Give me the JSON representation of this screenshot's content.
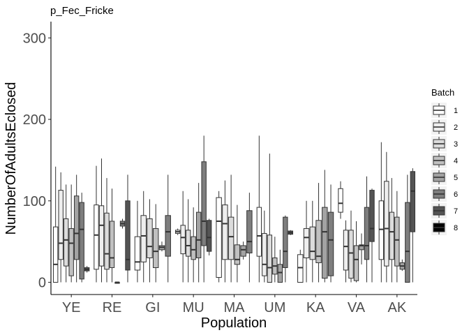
{
  "chart_data": {
    "type": "boxplot",
    "title": "p_Fec_Fricke",
    "xlabel": "Population",
    "ylabel": "NumberOfAdultsEclosed",
    "ylim": [
      -15,
      320
    ],
    "yticks": [
      0,
      100,
      200,
      300
    ],
    "categories": [
      "YE",
      "RE",
      "GI",
      "MU",
      "MA",
      "UM",
      "KA",
      "VA",
      "AK"
    ],
    "legend": {
      "title": "Batch",
      "position": "right"
    },
    "batches": [
      {
        "name": "1",
        "fill": "#ffffff"
      },
      {
        "name": "2",
        "fill": "#eeeeee"
      },
      {
        "name": "3",
        "fill": "#dcdcdc"
      },
      {
        "name": "4",
        "fill": "#c0c0c0"
      },
      {
        "name": "5",
        "fill": "#a3a3a3"
      },
      {
        "name": "6",
        "fill": "#7e7e7e"
      },
      {
        "name": "7",
        "fill": "#545454"
      },
      {
        "name": "8",
        "fill": "#000000"
      }
    ],
    "boxes": [
      {
        "pop": "YE",
        "batch": 1,
        "min": 0,
        "q1": 0,
        "median": 22,
        "q3": 68,
        "max": 142
      },
      {
        "pop": "YE",
        "batch": 2,
        "min": 0,
        "q1": 28,
        "median": 48,
        "q3": 113,
        "max": 135
      },
      {
        "pop": "YE",
        "batch": 3,
        "min": 0,
        "q1": 20,
        "median": 52,
        "q3": 78,
        "max": 120
      },
      {
        "pop": "YE",
        "batch": 4,
        "min": 0,
        "q1": 8,
        "median": 48,
        "q3": 66,
        "max": 120
      },
      {
        "pop": "YE",
        "batch": 5,
        "min": 0,
        "q1": 28,
        "median": 60,
        "q3": 106,
        "max": 132
      },
      {
        "pop": "YE",
        "batch": 6,
        "min": 0,
        "q1": 4,
        "median": 65,
        "q3": 98,
        "max": 110
      },
      {
        "pop": "YE",
        "batch": 7,
        "min": 12,
        "q1": 14,
        "median": 16,
        "q3": 18,
        "max": 20
      },
      {
        "pop": "RE",
        "batch": 1,
        "min": 0,
        "q1": 16,
        "median": 58,
        "q3": 95,
        "max": 143
      },
      {
        "pop": "RE",
        "batch": 2,
        "min": 0,
        "q1": 20,
        "median": 70,
        "q3": 94,
        "max": 152
      },
      {
        "pop": "RE",
        "batch": 3,
        "min": 0,
        "q1": 16,
        "median": 35,
        "q3": 85,
        "max": 128
      },
      {
        "pop": "RE",
        "batch": 4,
        "min": 0,
        "q1": 18,
        "median": 30,
        "q3": 75,
        "max": 115
      },
      {
        "pop": "RE",
        "batch": 5,
        "min": 0,
        "q1": 0,
        "median": 0,
        "q3": 0,
        "max": 0
      },
      {
        "pop": "RE",
        "batch": 6,
        "min": 66,
        "q1": 69,
        "median": 72,
        "q3": 75,
        "max": 78
      },
      {
        "pop": "RE",
        "batch": 7,
        "min": 0,
        "q1": 15,
        "median": 28,
        "q3": 100,
        "max": 132
      },
      {
        "pop": "GI",
        "batch": 1,
        "min": 0,
        "q1": 15,
        "median": 25,
        "q3": 56,
        "max": 100
      },
      {
        "pop": "GI",
        "batch": 2,
        "min": 0,
        "q1": 25,
        "median": 57,
        "q3": 82,
        "max": 112
      },
      {
        "pop": "GI",
        "batch": 3,
        "min": 0,
        "q1": 30,
        "median": 44,
        "q3": 78,
        "max": 102
      },
      {
        "pop": "GI",
        "batch": 4,
        "min": 0,
        "q1": 18,
        "median": 38,
        "q3": 66,
        "max": 96
      },
      {
        "pop": "GI",
        "batch": 5,
        "min": 38,
        "q1": 40,
        "median": 43,
        "q3": 45,
        "max": 50
      },
      {
        "pop": "GI",
        "batch": 6,
        "min": 0,
        "q1": 32,
        "median": 62,
        "q3": 82,
        "max": 132
      },
      {
        "pop": "MU",
        "batch": 1,
        "min": 58,
        "q1": 60,
        "median": 62,
        "q3": 64,
        "max": 66
      },
      {
        "pop": "MU",
        "batch": 2,
        "min": 0,
        "q1": 35,
        "median": 55,
        "q3": 70,
        "max": 112
      },
      {
        "pop": "MU",
        "batch": 3,
        "min": 0,
        "q1": 32,
        "median": 45,
        "q3": 64,
        "max": 102
      },
      {
        "pop": "MU",
        "batch": 4,
        "min": 0,
        "q1": 28,
        "median": 40,
        "q3": 56,
        "max": 92
      },
      {
        "pop": "MU",
        "batch": 5,
        "min": 0,
        "q1": 30,
        "median": 52,
        "q3": 86,
        "max": 122
      },
      {
        "pop": "MU",
        "batch": 6,
        "min": 0,
        "q1": 45,
        "median": 75,
        "q3": 148,
        "max": 180
      },
      {
        "pop": "MU",
        "batch": 7,
        "min": 33,
        "q1": 38,
        "median": 55,
        "q3": 76,
        "max": 78
      },
      {
        "pop": "MA",
        "batch": 1,
        "min": 0,
        "q1": 6,
        "median": 75,
        "q3": 104,
        "max": 112
      },
      {
        "pop": "MA",
        "batch": 2,
        "min": 0,
        "q1": 28,
        "median": 72,
        "q3": 95,
        "max": 125
      },
      {
        "pop": "MA",
        "batch": 3,
        "min": 0,
        "q1": 28,
        "median": 56,
        "q3": 80,
        "max": 132
      },
      {
        "pop": "MA",
        "batch": 4,
        "min": 0,
        "q1": 22,
        "median": 28,
        "q3": 46,
        "max": 95
      },
      {
        "pop": "MA",
        "batch": 5,
        "min": 28,
        "q1": 32,
        "median": 40,
        "q3": 45,
        "max": 50
      },
      {
        "pop": "MA",
        "batch": 6,
        "min": 0,
        "q1": 36,
        "median": 50,
        "q3": 88,
        "max": 110
      },
      {
        "pop": "UM",
        "batch": 1,
        "min": 0,
        "q1": 32,
        "median": 57,
        "q3": 92,
        "max": 180
      },
      {
        "pop": "UM",
        "batch": 2,
        "min": 0,
        "q1": 8,
        "median": 22,
        "q3": 60,
        "max": 88
      },
      {
        "pop": "UM",
        "batch": 3,
        "min": 0,
        "q1": 0,
        "median": 18,
        "q3": 58,
        "max": 158
      },
      {
        "pop": "UM",
        "batch": 4,
        "min": 0,
        "q1": 10,
        "median": 20,
        "q3": 30,
        "max": 56
      },
      {
        "pop": "UM",
        "batch": 5,
        "min": 0,
        "q1": 0,
        "median": 12,
        "q3": 22,
        "max": 40
      },
      {
        "pop": "UM",
        "batch": 6,
        "min": 0,
        "q1": 18,
        "median": 38,
        "q3": 80,
        "max": 82
      },
      {
        "pop": "UM",
        "batch": 7,
        "min": 58,
        "q1": 59,
        "median": 61,
        "q3": 63,
        "max": 64
      },
      {
        "pop": "KA",
        "batch": 1,
        "min": 0,
        "q1": 0,
        "median": 18,
        "q3": 34,
        "max": 40
      },
      {
        "pop": "KA",
        "batch": 2,
        "min": 0,
        "q1": 30,
        "median": 55,
        "q3": 66,
        "max": 100
      },
      {
        "pop": "KA",
        "batch": 3,
        "min": 0,
        "q1": 28,
        "median": 38,
        "q3": 68,
        "max": 100
      },
      {
        "pop": "KA",
        "batch": 4,
        "min": 0,
        "q1": 24,
        "median": 32,
        "q3": 76,
        "max": 122
      },
      {
        "pop": "KA",
        "batch": 5,
        "min": 0,
        "q1": 5,
        "median": 62,
        "q3": 92,
        "max": 138
      },
      {
        "pop": "KA",
        "batch": 6,
        "min": 0,
        "q1": 8,
        "median": 52,
        "q3": 86,
        "max": 120
      },
      {
        "pop": "VA",
        "batch": 1,
        "min": 78,
        "q1": 86,
        "median": 97,
        "q3": 115,
        "max": 124
      },
      {
        "pop": "VA",
        "batch": 2,
        "min": 0,
        "q1": 15,
        "median": 44,
        "q3": 64,
        "max": 76
      },
      {
        "pop": "VA",
        "batch": 3,
        "min": 0,
        "q1": 5,
        "median": 36,
        "q3": 64,
        "max": 88
      },
      {
        "pop": "VA",
        "batch": 4,
        "min": 0,
        "q1": 2,
        "median": 28,
        "q3": 45,
        "max": 75
      },
      {
        "pop": "VA",
        "batch": 5,
        "min": 22,
        "q1": 40,
        "median": 45,
        "q3": 46,
        "max": 60
      },
      {
        "pop": "VA",
        "batch": 6,
        "min": 0,
        "q1": 28,
        "median": 45,
        "q3": 92,
        "max": 130
      },
      {
        "pop": "VA",
        "batch": 7,
        "min": 0,
        "q1": 50,
        "median": 66,
        "q3": 113,
        "max": 115
      },
      {
        "pop": "AK",
        "batch": 1,
        "min": 0,
        "q1": 28,
        "median": 65,
        "q3": 100,
        "max": 172
      },
      {
        "pop": "AK",
        "batch": 2,
        "min": 0,
        "q1": 20,
        "median": 66,
        "q3": 124,
        "max": 160
      },
      {
        "pop": "AK",
        "batch": 3,
        "min": 0,
        "q1": 28,
        "median": 62,
        "q3": 86,
        "max": 128
      },
      {
        "pop": "AK",
        "batch": 4,
        "min": 0,
        "q1": 20,
        "median": 52,
        "q3": 80,
        "max": 112
      },
      {
        "pop": "AK",
        "batch": 5,
        "min": 14,
        "q1": 16,
        "median": 20,
        "q3": 24,
        "max": 28
      },
      {
        "pop": "AK",
        "batch": 6,
        "min": 0,
        "q1": 0,
        "median": 38,
        "q3": 98,
        "max": 132
      },
      {
        "pop": "AK",
        "batch": 7,
        "min": 0,
        "q1": 62,
        "median": 112,
        "q3": 136,
        "max": 140
      }
    ]
  }
}
